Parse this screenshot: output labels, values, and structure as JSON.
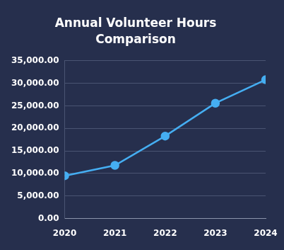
{
  "chart_data": {
    "type": "line",
    "title": "Annual Volunteer Hours Comparison",
    "categories": [
      "2020",
      "2021",
      "2022",
      "2023",
      "2024"
    ],
    "values": [
      9500,
      11800,
      18300,
      25600,
      30800
    ],
    "color": "#45aef2",
    "ylim": [
      0,
      35000
    ],
    "yticks": [
      {
        "value": 0,
        "label": "0.00"
      },
      {
        "value": 5000,
        "label": "5,000.00"
      },
      {
        "value": 10000,
        "label": "10,000.00"
      },
      {
        "value": 15000,
        "label": "15,000.00"
      },
      {
        "value": 20000,
        "label": "20,000.00"
      },
      {
        "value": 25000,
        "label": "25,000.00"
      },
      {
        "value": 30000,
        "label": "30,000.00"
      },
      {
        "value": 35000,
        "label": "35,000.00"
      }
    ],
    "grid": true,
    "marker": "circle"
  }
}
